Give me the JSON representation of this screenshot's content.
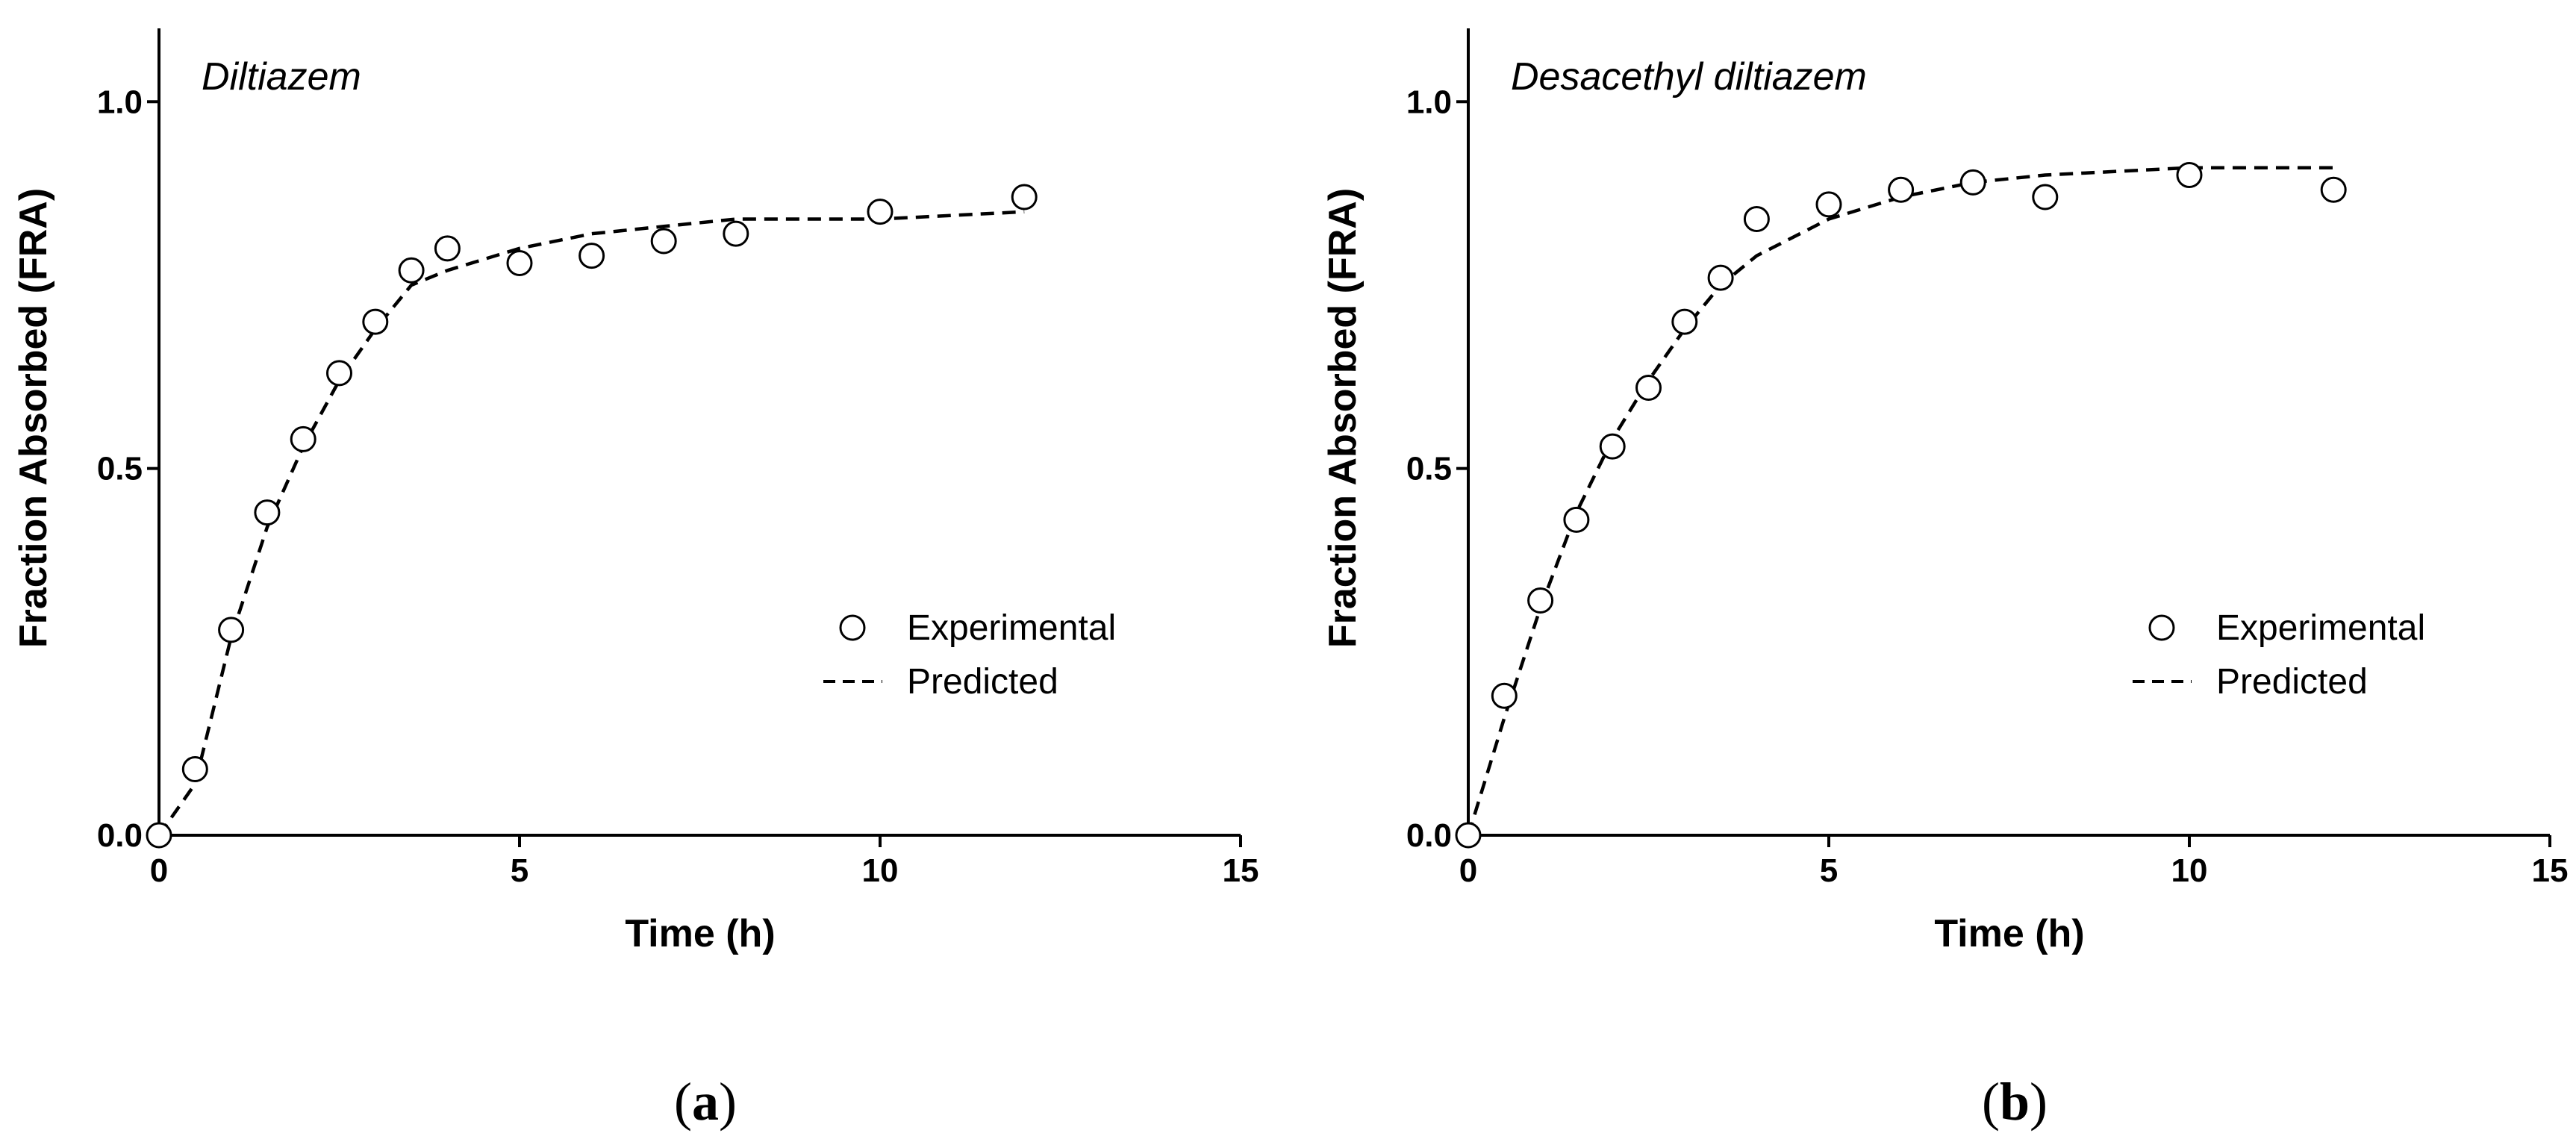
{
  "chart_data": [
    {
      "type": "line",
      "panel": "a",
      "title": "Diltiazem",
      "xlabel": "Time (h)",
      "ylabel": "Fraction Absorbed (FRA)",
      "xlim": [
        0,
        15
      ],
      "ylim": [
        0,
        1.1
      ],
      "xticks": [
        "0",
        "5",
        "10",
        "15"
      ],
      "yticks": [
        "0.0",
        "0.5",
        "1.0"
      ],
      "xtick_values": [
        0,
        5,
        10,
        15
      ],
      "ytick_values": [
        0,
        0.5,
        1.0
      ],
      "legend_position": "middle-right",
      "series": [
        {
          "name": "Experimental",
          "style": "open-circle",
          "x": [
            0,
            0.5,
            1,
            1.5,
            2,
            2.5,
            3,
            3.5,
            4,
            5,
            6,
            7,
            8,
            10,
            12
          ],
          "y": [
            0,
            0.09,
            0.28,
            0.44,
            0.54,
            0.63,
            0.7,
            0.77,
            0.8,
            0.78,
            0.79,
            0.81,
            0.82,
            0.85,
            0.87
          ]
        },
        {
          "name": "Predicted",
          "style": "dashed-line",
          "x": [
            0,
            0.5,
            1,
            1.5,
            2,
            2.5,
            3,
            3.5,
            4,
            5,
            6,
            7,
            8,
            9,
            10,
            11,
            12
          ],
          "y": [
            0,
            0.07,
            0.27,
            0.42,
            0.53,
            0.62,
            0.69,
            0.75,
            0.77,
            0.8,
            0.82,
            0.83,
            0.84,
            0.84,
            0.84,
            0.845,
            0.85
          ]
        }
      ]
    },
    {
      "type": "line",
      "panel": "b",
      "title": "Desacethyl diltiazem",
      "xlabel": "Time (h)",
      "ylabel": "Fraction Absorbed (FRA)",
      "xlim": [
        0,
        15
      ],
      "ylim": [
        0,
        1.1
      ],
      "xticks": [
        "0",
        "5",
        "10",
        "15"
      ],
      "yticks": [
        "0.0",
        "0.5",
        "1.0"
      ],
      "xtick_values": [
        0,
        5,
        10,
        15
      ],
      "ytick_values": [
        0,
        0.5,
        1.0
      ],
      "legend_position": "middle-right",
      "series": [
        {
          "name": "Experimental",
          "style": "open-circle",
          "x": [
            0,
            0.5,
            1,
            1.5,
            2,
            2.5,
            3,
            3.5,
            4,
            5,
            6,
            7,
            8,
            10,
            12
          ],
          "y": [
            0,
            0.19,
            0.32,
            0.43,
            0.53,
            0.61,
            0.7,
            0.76,
            0.84,
            0.86,
            0.88,
            0.89,
            0.87,
            0.9,
            0.88
          ]
        },
        {
          "name": "Predicted",
          "style": "dashed-line",
          "x": [
            0,
            0.5,
            1,
            1.5,
            2,
            2.5,
            3,
            3.5,
            4,
            5,
            6,
            7,
            8,
            9,
            10,
            11,
            12
          ],
          "y": [
            0,
            0.16,
            0.31,
            0.44,
            0.54,
            0.62,
            0.69,
            0.75,
            0.79,
            0.84,
            0.87,
            0.89,
            0.9,
            0.905,
            0.91,
            0.91,
            0.91
          ]
        }
      ]
    }
  ],
  "panel_labels": {
    "a": {
      "open": "(",
      "letter": "a",
      "close": ")"
    },
    "b": {
      "open": "(",
      "letter": "b",
      "close": ")"
    }
  }
}
